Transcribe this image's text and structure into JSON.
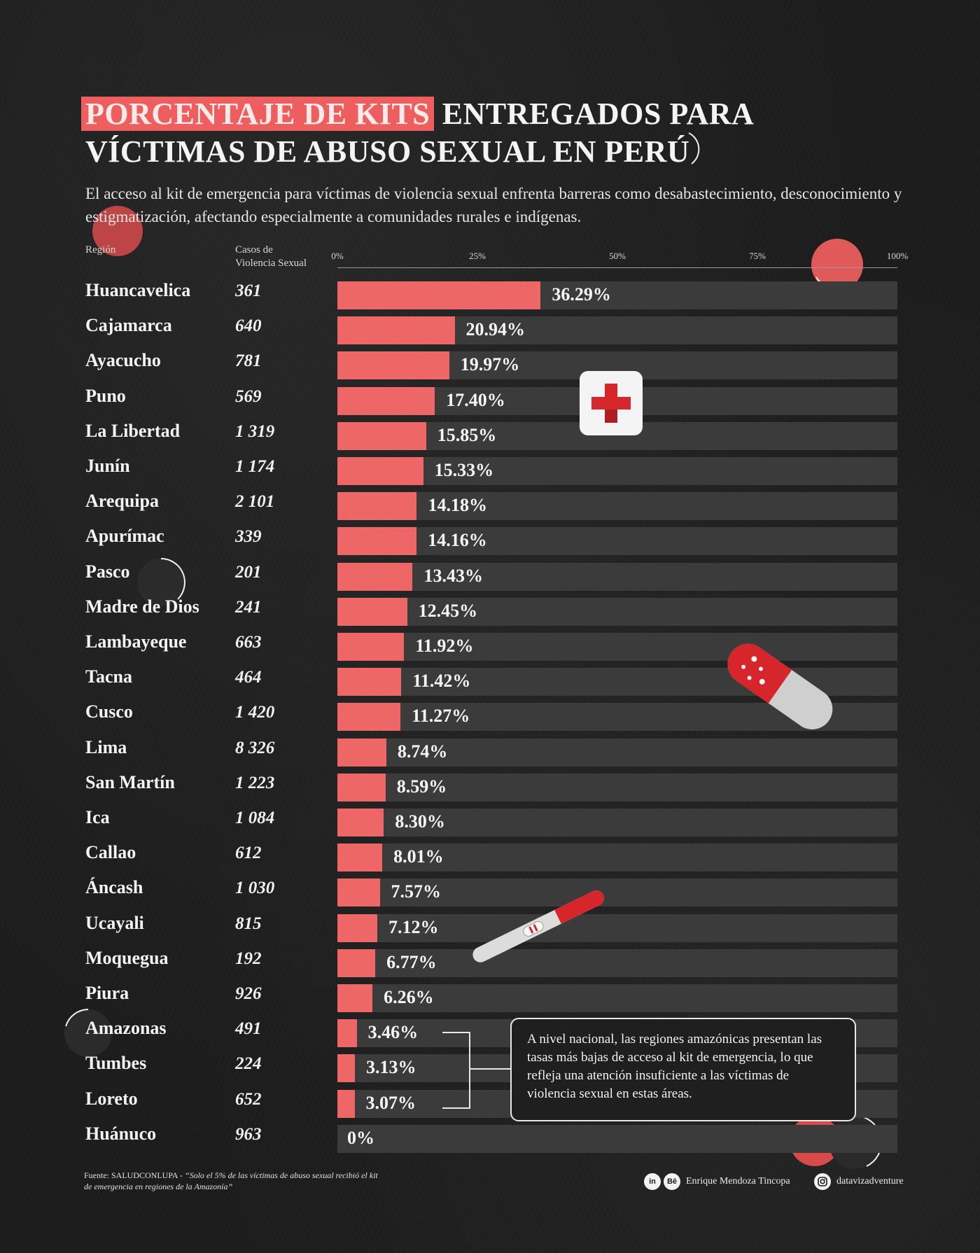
{
  "header": {
    "title_highlight": "PORCENTAJE DE KITS",
    "title_rest_line1": " ENTREGADOS PARA",
    "title_line2": "VÍCTIMAS DE ABUSO SEXUAL EN PERÚ",
    "subtitle": "El acceso al kit de emergencia para víctimas de violencia sexual enfrenta barreras como desabastecimiento, desconocimiento y estigmatización, afectando especialmente a comunidades rurales e indígenas."
  },
  "columns": {
    "region": "Región",
    "cases_line1": "Casos de",
    "cases_line2": "Violencia Sexual"
  },
  "chart_data": {
    "type": "bar",
    "orientation": "horizontal",
    "xlim": [
      0,
      100
    ],
    "ticks": [
      "0%",
      "25%",
      "50%",
      "75%",
      "100%"
    ],
    "categories": [
      "Huancavelica",
      "Cajamarca",
      "Ayacucho",
      "Puno",
      "La Libertad",
      "Junín",
      "Arequipa",
      "Apurímac",
      "Pasco",
      "Madre de Dios",
      "Lambayeque",
      "Tacna",
      "Cusco",
      "Lima",
      "San Martín",
      "Ica",
      "Callao",
      "Áncash",
      "Ucayali",
      "Moquegua",
      "Piura",
      "Amazonas",
      "Tumbes",
      "Loreto",
      "Huánuco"
    ],
    "cases": [
      "361",
      "640",
      "781",
      "569",
      "1 319",
      "1 174",
      "2 101",
      "339",
      "201",
      "241",
      "663",
      "464",
      "1 420",
      "8 326",
      "1 223",
      "1 084",
      "612",
      "1 030",
      "815",
      "192",
      "926",
      "491",
      "224",
      "652",
      "963"
    ],
    "values": [
      36.29,
      20.94,
      19.97,
      17.4,
      15.85,
      15.33,
      14.18,
      14.16,
      13.43,
      12.45,
      11.92,
      11.42,
      11.27,
      8.74,
      8.59,
      8.3,
      8.01,
      7.57,
      7.12,
      6.77,
      6.26,
      3.46,
      3.13,
      3.07,
      0
    ],
    "labels": [
      "36.29%",
      "20.94%",
      "19.97%",
      "17.40%",
      "15.85%",
      "15.33%",
      "14.18%",
      "14.16%",
      "13.43%",
      "12.45%",
      "11.92%",
      "11.42%",
      "11.27%",
      "8.74%",
      "8.59%",
      "8.30%",
      "8.01%",
      "7.57%",
      "7.12%",
      "6.77%",
      "6.26%",
      "3.46%",
      "3.13%",
      "3.07%",
      "0%"
    ],
    "bar_color": "#ee6464",
    "track_color": "#3b3b3b"
  },
  "annotation": {
    "text": "A nivel nacional, las regiones amazónicas presentan las tasas más bajas de acceso al kit de emergencia, lo que refleja una atención insuficiente a las víctimas de violencia sexual en estas áreas."
  },
  "footer": {
    "source_prefix": "Fuente: SALUDCONLUPA - ",
    "source_quote": "“Solo el 5% de las víctimas de abuso sexual recibió el kit de emergencia en regiones de la Amazonía”",
    "linkedin_icon": "in",
    "behance_icon": "Bē",
    "author": "Enrique Mendoza Tincopa",
    "instagram_handle": "datavizadventure"
  },
  "colors": {
    "accent": "#ef5e5e",
    "background": "#1c1c1c"
  }
}
